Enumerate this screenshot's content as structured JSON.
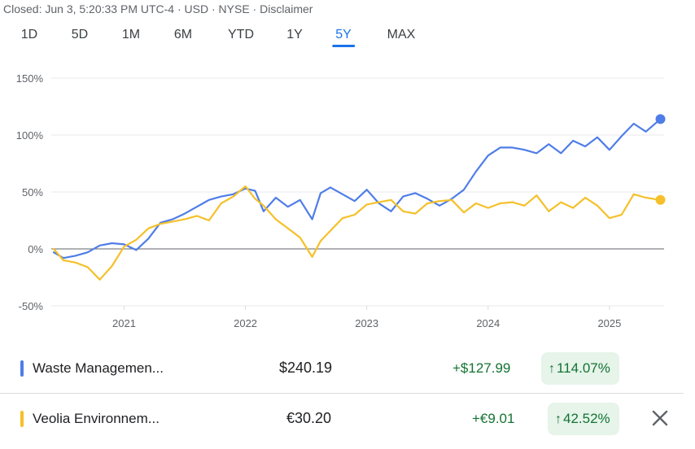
{
  "status_line": "Closed: Jun 3, 5:20:33 PM UTC-4 · USD · NYSE · Disclaimer",
  "ranges": [
    "1D",
    "5D",
    "1M",
    "6M",
    "YTD",
    "1Y",
    "5Y",
    "MAX"
  ],
  "active_range": "5Y",
  "colors": {
    "wm": "#4f7de8",
    "veolia": "#f5c02a",
    "accent": "#1a73e8",
    "gain_bg": "#e6f4ea",
    "gain_text": "#137333"
  },
  "rows": [
    {
      "name": "Waste Managemen...",
      "price": "$240.19",
      "change": "+$127.99",
      "arrow": "↑",
      "percent": "114.07%",
      "color": "#4f7de8"
    },
    {
      "name": "Veolia Environnem...",
      "price": "€30.20",
      "change": "+€9.01",
      "arrow": "↑",
      "percent": "42.52%",
      "color": "#f5c02a"
    }
  ],
  "close_icon": "close-icon",
  "chart_data": {
    "type": "line",
    "y_ticks": [
      "150%",
      "100%",
      "50%",
      "0%",
      "-50%"
    ],
    "y_tick_values": [
      150,
      100,
      50,
      0,
      -50
    ],
    "x_ticks": [
      "2021",
      "2022",
      "2023",
      "2024",
      "2025"
    ],
    "x_tick_values": [
      2021.0,
      2022.0,
      2023.0,
      2024.0,
      2025.0
    ],
    "xlim": [
      2020.4,
      2025.45
    ],
    "ylim": [
      -50,
      150
    ],
    "grid": true,
    "series": [
      {
        "name": "Waste Managemen...",
        "color": "#4f7de8",
        "x": [
          2020.42,
          2020.5,
          2020.6,
          2020.7,
          2020.8,
          2020.9,
          2021.0,
          2021.1,
          2021.2,
          2021.3,
          2021.4,
          2021.5,
          2021.6,
          2021.7,
          2021.8,
          2021.9,
          2022.0,
          2022.08,
          2022.15,
          2022.25,
          2022.35,
          2022.45,
          2022.55,
          2022.62,
          2022.7,
          2022.8,
          2022.9,
          2023.0,
          2023.1,
          2023.2,
          2023.3,
          2023.4,
          2023.5,
          2023.6,
          2023.7,
          2023.8,
          2023.9,
          2024.0,
          2024.1,
          2024.2,
          2024.3,
          2024.4,
          2024.5,
          2024.6,
          2024.7,
          2024.8,
          2024.9,
          2025.0,
          2025.1,
          2025.2,
          2025.3,
          2025.42
        ],
        "y": [
          -3,
          -8,
          -6,
          -3,
          3,
          5,
          4,
          -1,
          9,
          23,
          26,
          31,
          37,
          43,
          46,
          48,
          53,
          51,
          33,
          45,
          37,
          43,
          26,
          49,
          54,
          48,
          42,
          52,
          40,
          33,
          46,
          49,
          44,
          38,
          44,
          52,
          68,
          82,
          89,
          89,
          87,
          84,
          92,
          84,
          95,
          90,
          98,
          87,
          99,
          110,
          103,
          114
        ]
      },
      {
        "name": "Veolia Environnem...",
        "color": "#f5c02a",
        "x": [
          2020.42,
          2020.5,
          2020.6,
          2020.7,
          2020.8,
          2020.9,
          2021.0,
          2021.1,
          2021.2,
          2021.3,
          2021.4,
          2021.5,
          2021.6,
          2021.7,
          2021.8,
          2021.9,
          2022.0,
          2022.08,
          2022.15,
          2022.25,
          2022.35,
          2022.45,
          2022.55,
          2022.62,
          2022.7,
          2022.8,
          2022.9,
          2023.0,
          2023.1,
          2023.2,
          2023.3,
          2023.4,
          2023.5,
          2023.6,
          2023.7,
          2023.8,
          2023.9,
          2024.0,
          2024.1,
          2024.2,
          2024.3,
          2024.4,
          2024.5,
          2024.6,
          2024.7,
          2024.8,
          2024.9,
          2025.0,
          2025.1,
          2025.2,
          2025.3,
          2025.42
        ],
        "y": [
          0,
          -10,
          -12,
          -16,
          -27,
          -15,
          2,
          8,
          18,
          22,
          24,
          26,
          29,
          25,
          40,
          46,
          55,
          44,
          38,
          26,
          18,
          10,
          -7,
          7,
          16,
          27,
          30,
          39,
          41,
          43,
          33,
          31,
          40,
          42,
          43,
          32,
          40,
          36,
          40,
          41,
          38,
          47,
          33,
          41,
          36,
          45,
          38,
          27,
          30,
          48,
          45,
          43
        ]
      }
    ]
  }
}
